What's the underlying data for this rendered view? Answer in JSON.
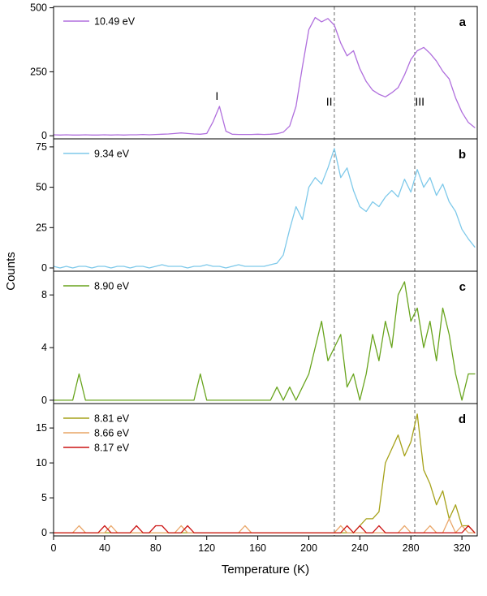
{
  "chart_data": {
    "type": "line",
    "title": "",
    "xlabel": "Temperature (K)",
    "ylabel": "Counts",
    "x_start": 0,
    "x_step": 5,
    "xlim": [
      0,
      332
    ],
    "xticks": [
      0,
      40,
      80,
      120,
      160,
      200,
      240,
      280,
      320
    ],
    "dashed_lines_x": [
      220,
      283
    ],
    "legend_position": "top-left",
    "grid": false,
    "style": {
      "dash_color": "#666666",
      "axis_color": "#000000",
      "background": "#ffffff"
    },
    "panels": [
      {
        "label": "a",
        "ylim": [
          -12,
          505
        ],
        "yticks": [
          0,
          250,
          500
        ],
        "series": [
          {
            "name": "10.49 eV",
            "color": "#b06fdd",
            "values": [
              4,
              3,
              4,
              3,
              3,
              4,
              3,
              3,
              4,
              3,
              4,
              3,
              4,
              4,
              5,
              4,
              5,
              6,
              7,
              9,
              11,
              9,
              7,
              6,
              9,
              55,
              115,
              18,
              6,
              5,
              5,
              5,
              6,
              5,
              6,
              8,
              14,
              38,
              115,
              270,
              415,
              462,
              445,
              458,
              432,
              362,
              312,
              332,
              262,
              212,
              178,
              162,
              152,
              168,
              188,
              238,
              298,
              332,
              345,
              322,
              292,
              252,
              222,
              148,
              92,
              52,
              32
            ]
          }
        ],
        "annotations": [
          {
            "text": "I",
            "x": 128,
            "y": 140
          },
          {
            "text": "II",
            "x": 216,
            "y": 118
          },
          {
            "text": "III",
            "x": 287,
            "y": 118
          }
        ]
      },
      {
        "label": "b",
        "ylim": [
          -2,
          80
        ],
        "yticks": [
          0,
          25,
          50,
          75
        ],
        "series": [
          {
            "name": "9.34 eV",
            "color": "#7ec9ea",
            "values": [
              1,
              0,
              1,
              0,
              1,
              1,
              0,
              1,
              1,
              0,
              1,
              1,
              0,
              1,
              1,
              0,
              1,
              2,
              1,
              1,
              1,
              0,
              1,
              1,
              2,
              1,
              1,
              0,
              1,
              2,
              1,
              1,
              1,
              1,
              2,
              3,
              8,
              24,
              38,
              30,
              50,
              56,
              52,
              62,
              74,
              56,
              62,
              48,
              38,
              35,
              41,
              38,
              44,
              48,
              44,
              55,
              47,
              61,
              50,
              56,
              45,
              52,
              41,
              35,
              24,
              18,
              13
            ]
          }
        ],
        "annotations": []
      },
      {
        "label": "c",
        "ylim": [
          -0.25,
          9.8
        ],
        "yticks": [
          0,
          4,
          8
        ],
        "series": [
          {
            "name": "8.90 eV",
            "color": "#68a41d",
            "values": [
              0,
              0,
              0,
              0,
              2,
              0,
              0,
              0,
              0,
              0,
              0,
              0,
              0,
              0,
              0,
              0,
              0,
              0,
              0,
              0,
              0,
              0,
              0,
              2,
              0,
              0,
              0,
              0,
              0,
              0,
              0,
              0,
              0,
              0,
              0,
              1,
              0,
              1,
              0,
              1,
              2,
              4,
              6,
              3,
              4,
              5,
              1,
              2,
              0,
              2,
              5,
              3,
              6,
              4,
              8,
              9,
              6,
              7,
              4,
              6,
              3,
              7,
              5,
              2,
              0,
              2,
              2
            ]
          }
        ],
        "annotations": []
      },
      {
        "label": "d",
        "ylim": [
          -0.45,
          18.5
        ],
        "yticks": [
          0,
          5,
          10,
          15
        ],
        "series": [
          {
            "name": "8.81 eV",
            "color": "#a6a21a",
            "values": [
              0,
              0,
              0,
              0,
              0,
              0,
              0,
              0,
              0,
              0,
              0,
              0,
              0,
              0,
              0,
              0,
              0,
              0,
              0,
              0,
              0,
              0,
              0,
              0,
              0,
              0,
              0,
              0,
              0,
              0,
              0,
              0,
              0,
              0,
              0,
              0,
              0,
              0,
              0,
              0,
              0,
              0,
              0,
              0,
              0,
              0,
              0,
              0,
              1,
              2,
              2,
              3,
              10,
              12,
              14,
              11,
              13,
              17,
              9,
              7,
              4,
              6,
              2,
              4,
              1,
              1,
              0
            ]
          },
          {
            "name": "8.66 eV",
            "color": "#e9a567",
            "values": [
              0,
              0,
              0,
              0,
              1,
              0,
              0,
              0,
              0,
              1,
              0,
              0,
              0,
              0,
              0,
              0,
              0,
              0,
              0,
              0,
              1,
              0,
              0,
              0,
              0,
              0,
              0,
              0,
              0,
              0,
              1,
              0,
              0,
              0,
              0,
              0,
              0,
              0,
              0,
              0,
              0,
              0,
              0,
              0,
              0,
              1,
              0,
              0,
              0,
              0,
              0,
              0,
              0,
              0,
              0,
              1,
              0,
              0,
              0,
              1,
              0,
              0,
              2,
              0,
              1,
              0,
              0
            ]
          },
          {
            "name": "8.17 eV",
            "color": "#cc1414",
            "values": [
              0,
              0,
              0,
              0,
              0,
              0,
              0,
              0,
              1,
              0,
              0,
              0,
              0,
              1,
              0,
              0,
              1,
              1,
              0,
              0,
              0,
              1,
              0,
              0,
              0,
              0,
              0,
              0,
              0,
              0,
              0,
              0,
              0,
              0,
              0,
              0,
              0,
              0,
              0,
              0,
              0,
              0,
              0,
              0,
              0,
              0,
              1,
              0,
              1,
              0,
              0,
              1,
              0,
              0,
              0,
              0,
              0,
              0,
              0,
              0,
              0,
              0,
              0,
              0,
              0,
              1,
              0
            ]
          }
        ],
        "annotations": []
      }
    ]
  }
}
